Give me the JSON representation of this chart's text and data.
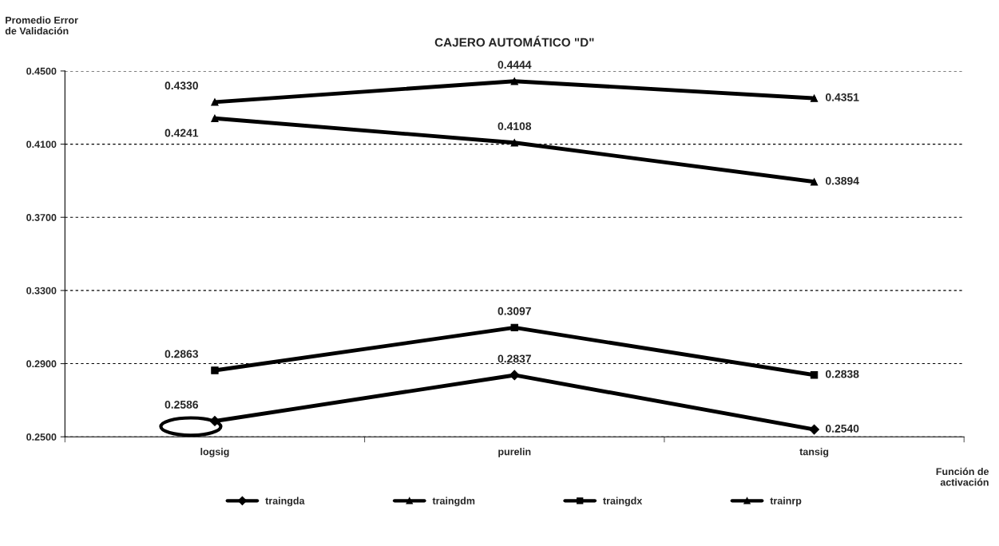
{
  "chart_data": {
    "type": "line",
    "title": "CAJERO AUTOMÁTICO \"D\"",
    "ylabel": "Promedio Error\nde Validación",
    "xlabel": "Función de\nactivación",
    "categories": [
      "logsig",
      "purelin",
      "tansig"
    ],
    "series": [
      {
        "name": "traingda",
        "color": "#000000",
        "marker": "diamond",
        "values": [
          0.2586,
          0.2837,
          0.254
        ],
        "value_labels": [
          "0.2586",
          "0.2837",
          "0.2540"
        ]
      },
      {
        "name": "traingdm",
        "color": "#000000",
        "marker": "triangle",
        "values": [
          0.433,
          0.4444,
          0.4351
        ],
        "value_labels": [
          "0.4330",
          "0.4444",
          "0.4351"
        ]
      },
      {
        "name": "traingdx",
        "color": "#000000",
        "marker": "square",
        "values": [
          0.2863,
          0.3097,
          0.2838
        ],
        "value_labels": [
          "0.2863",
          "0.3097",
          "0.2838"
        ]
      },
      {
        "name": "trainrp",
        "color": "#000000",
        "marker": "triangle",
        "values": [
          0.4241,
          0.4108,
          0.3894
        ],
        "value_labels": [
          "0.4241",
          "0.4108",
          "0.3894"
        ]
      }
    ],
    "ylim": [
      0.25,
      0.45
    ],
    "yticks": [
      {
        "value": 0.25,
        "label": "0.2500"
      },
      {
        "value": 0.29,
        "label": "0.2900"
      },
      {
        "value": 0.33,
        "label": "0.3300"
      },
      {
        "value": 0.37,
        "label": "0.3700"
      },
      {
        "value": 0.41,
        "label": "0.4100"
      },
      {
        "value": 0.45,
        "label": "0.4500"
      }
    ],
    "grid": "y",
    "legend": "bottom",
    "line_style": "solid"
  }
}
